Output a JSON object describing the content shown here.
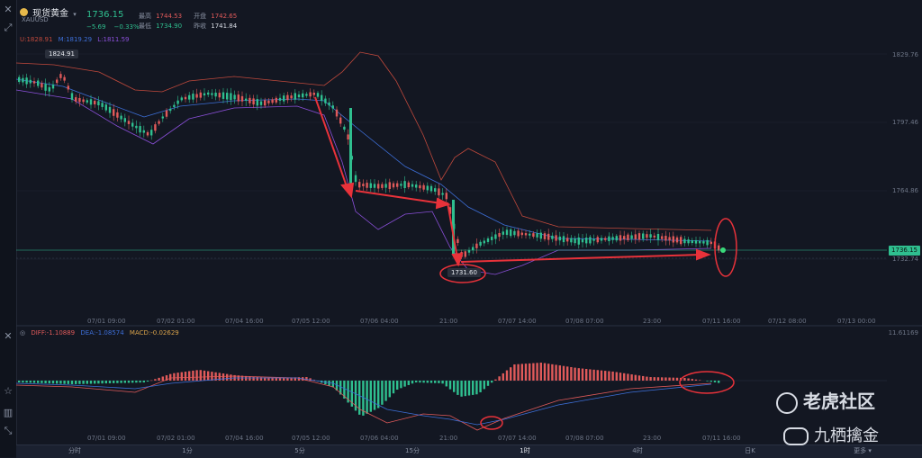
{
  "header": {
    "symbol_name": "现货黄金",
    "symbol_code": "XAUUSD",
    "last_price": "1736.15",
    "change": "−5.69",
    "change_pct": "−0.33%",
    "high_label": "最高",
    "high_value": "1744.53",
    "open_label": "开盘",
    "open_value": "1742.65",
    "low_label": "最低",
    "low_value": "1734.90",
    "prev_close_label": "昨收",
    "prev_close_value": "1741.84"
  },
  "boll_legend": {
    "upper": "U:1828.91",
    "middle": "M:1819.29",
    "lower": "L:1811.59"
  },
  "main_chart": {
    "y_ticks": [
      "1829.76",
      "1797.46",
      "1764.86",
      "1732.74"
    ],
    "current_price_tag": "1736.15",
    "high_callout": "1824.91",
    "low_callout": "1731.60",
    "x_ticks": [
      "07/01 09:00",
      "07/02 01:00",
      "07/04 16:00",
      "07/05 12:00",
      "07/06 04:00",
      "21:00",
      "07/07 14:00",
      "07/08 07:00",
      "23:00",
      "07/11 16:00",
      "07/12 08:00",
      "07/13 00:00"
    ]
  },
  "macd": {
    "diff": "DIFF:-1.10889",
    "dea": "DEA:-1.08574",
    "macd": "MACD:-0.02629",
    "y_tick": "11.61169",
    "x_ticks": [
      "07/01 09:00",
      "07/02 01:00",
      "07/04 16:00",
      "07/05 12:00",
      "07/06 04:00",
      "21:00",
      "07/07 14:00",
      "07/08 07:00",
      "23:00",
      "07/11 16:00"
    ]
  },
  "timeframes": [
    "分时",
    "1分",
    "5分",
    "15分",
    "1时",
    "4时",
    "日K",
    "更多 ▾"
  ],
  "active_timeframe": "1时",
  "watermarks": {
    "community": "老虎社区",
    "author": "九栖擒金"
  },
  "colors": {
    "up": "#e05a5a",
    "down": "#2fbf8f",
    "upper_band": "#c0493c",
    "middle_band": "#3d6fd8",
    "lower_band": "#8a4fd8",
    "annotation": "#e8323a"
  },
  "icons": [
    "close-icon",
    "drawing-tool-icon",
    "settings-icon",
    "sound-icon",
    "expand-icon",
    "star-icon",
    "chart-icon"
  ]
}
